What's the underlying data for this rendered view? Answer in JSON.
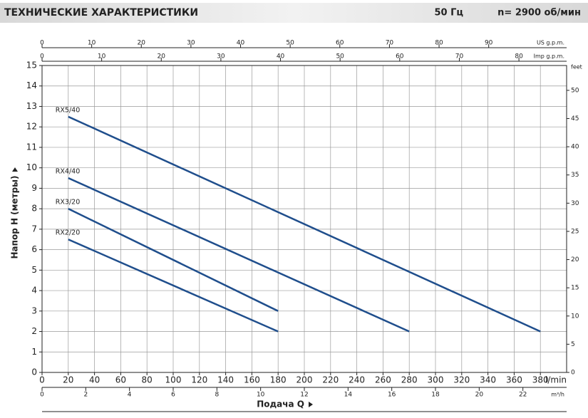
{
  "header": {
    "title": "ТЕХНИЧЕСКИЕ ХАРАКТЕРИСТИКИ",
    "frequency": "50 Гц",
    "speed": "n= 2900  об/мин"
  },
  "chart_data": {
    "type": "line",
    "xlabel": "Подача Q",
    "ylabel": "Напор H  (метры)",
    "xunit": "l/min",
    "xlim": [
      0,
      400
    ],
    "xticks": [
      0,
      20,
      40,
      60,
      80,
      100,
      120,
      140,
      160,
      180,
      200,
      220,
      240,
      260,
      280,
      300,
      320,
      340,
      360,
      380
    ],
    "ylim": [
      0,
      15
    ],
    "yticks": [
      0,
      1,
      2,
      3,
      4,
      5,
      6,
      7,
      8,
      9,
      10,
      11,
      12,
      13,
      14,
      15
    ],
    "y2label": "feet",
    "y2lim": [
      0,
      54.4
    ],
    "y2ticks": [
      0,
      5,
      10,
      15,
      20,
      25,
      30,
      35,
      40,
      45,
      50
    ],
    "extra_x_axes": [
      {
        "label": "US g.p.m.",
        "xlim": [
          0,
          105.7
        ],
        "xticks": [
          0,
          10,
          20,
          30,
          40,
          50,
          60,
          70,
          80,
          90
        ]
      },
      {
        "label": "Imp g.p.m.",
        "xlim": [
          0,
          88
        ],
        "xticks": [
          0,
          10,
          20,
          30,
          40,
          50,
          60,
          70,
          80
        ]
      },
      {
        "label": "m³/h",
        "xlim": [
          0,
          24
        ],
        "xticks": [
          0,
          2,
          4,
          6,
          8,
          10,
          12,
          14,
          16,
          18,
          20,
          22
        ]
      }
    ],
    "grid": true,
    "series": [
      {
        "name": "RX5/40",
        "color": "#1f4e8c",
        "x": [
          20,
          380
        ],
        "values": [
          12.5,
          2.0
        ]
      },
      {
        "name": "RX4/40",
        "color": "#1f4e8c",
        "x": [
          20,
          280
        ],
        "values": [
          9.5,
          2.0
        ]
      },
      {
        "name": "RX3/20",
        "color": "#1f4e8c",
        "x": [
          20,
          180
        ],
        "values": [
          8.0,
          3.0
        ]
      },
      {
        "name": "RX2/20",
        "color": "#1f4e8c",
        "x": [
          20,
          180
        ],
        "values": [
          6.5,
          2.0
        ]
      }
    ]
  }
}
